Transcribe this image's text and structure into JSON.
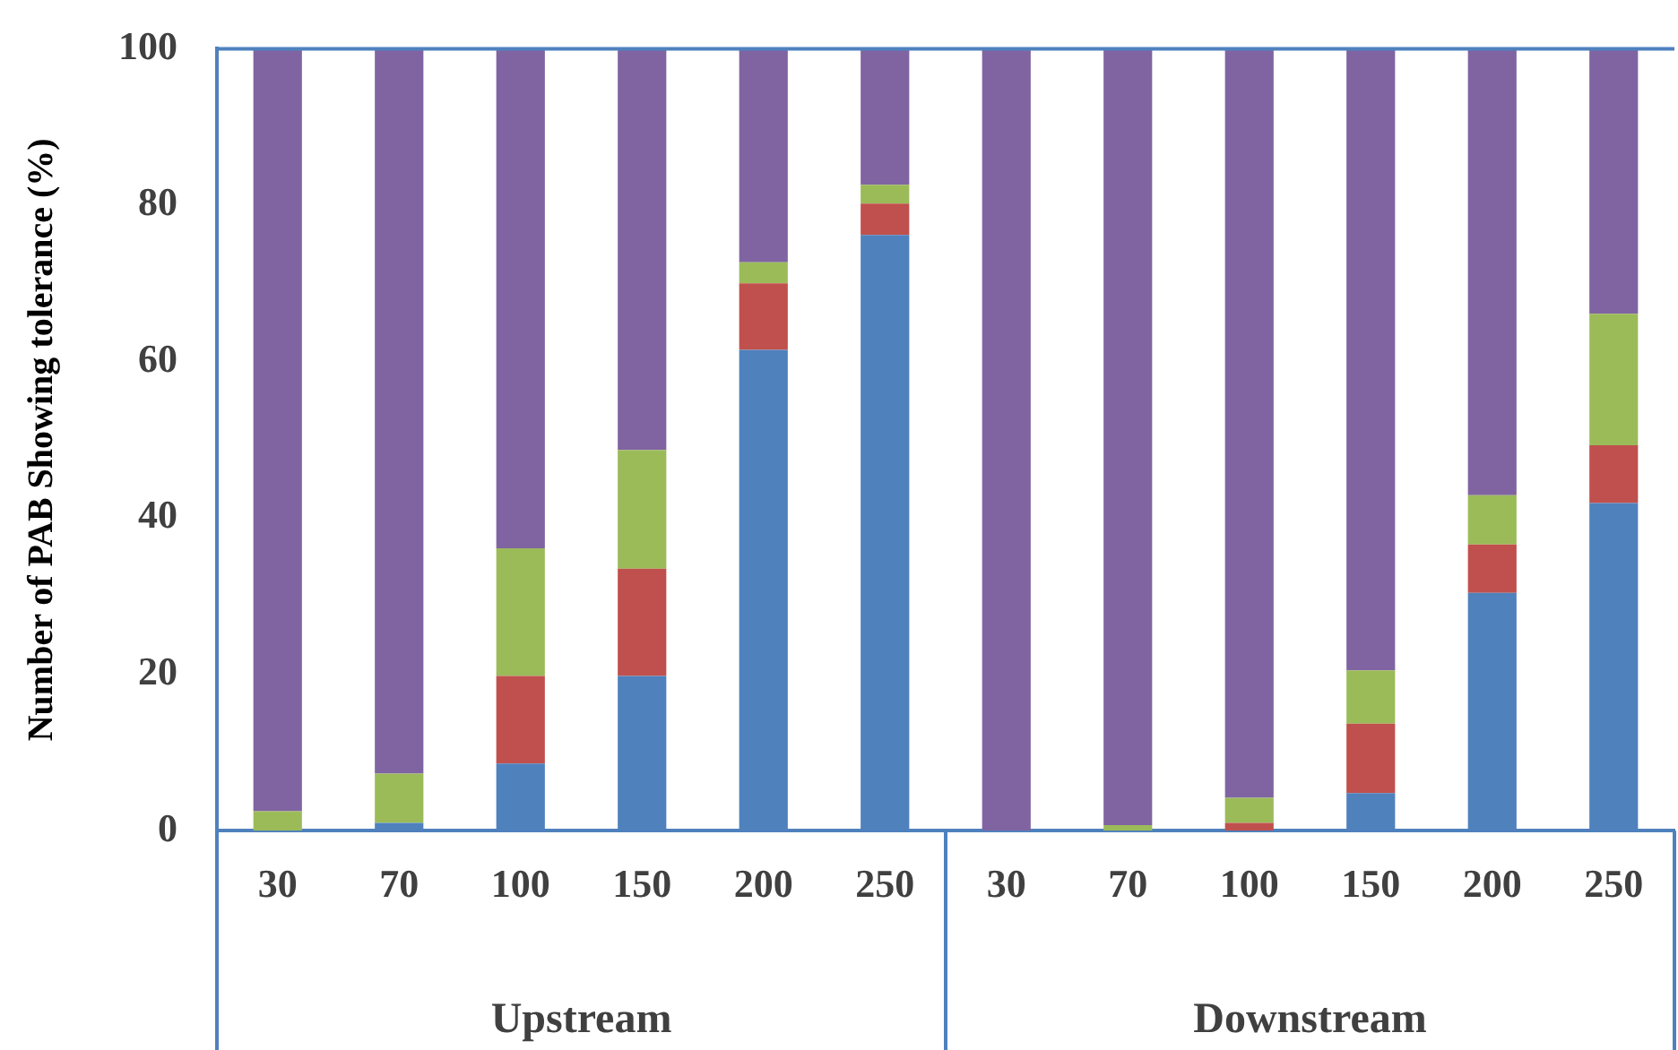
{
  "chart_data": {
    "type": "bar",
    "stacked": true,
    "ylabel": "Number of PAB Showing tolerance (%)",
    "categories": [
      "30",
      "70",
      "100",
      "150",
      "200",
      "250",
      "30",
      "70",
      "100",
      "150",
      "200",
      "250"
    ],
    "series": [
      {
        "color": "#4f81bd",
        "values": [
          0,
          1,
          8.6,
          19.8,
          61.5,
          76.2,
          0,
          0,
          0,
          4.8,
          30.4,
          41.9
        ]
      },
      {
        "color": "#c0504d",
        "values": [
          0,
          0,
          11.2,
          13.7,
          8.5,
          4,
          0,
          0,
          1,
          8.9,
          6.2,
          7.4
        ]
      },
      {
        "color": "#9bbb59",
        "values": [
          2.5,
          6.3,
          16.3,
          15.2,
          2.7,
          2.4,
          0,
          0.7,
          3.2,
          6.8,
          6.3,
          16.8
        ]
      },
      {
        "color": "#8064a2",
        "values": [
          97.5,
          92.7,
          63.9,
          51.3,
          27.3,
          17.4,
          100,
          99.3,
          95.8,
          79.5,
          57.1,
          33.9
        ]
      }
    ],
    "annotations": [
      "Upstream",
      "Downstream"
    ],
    "ylim": [
      0,
      100
    ],
    "yticks": [
      0,
      20,
      40,
      60,
      80,
      100
    ],
    "grid": false,
    "legend": false
  }
}
